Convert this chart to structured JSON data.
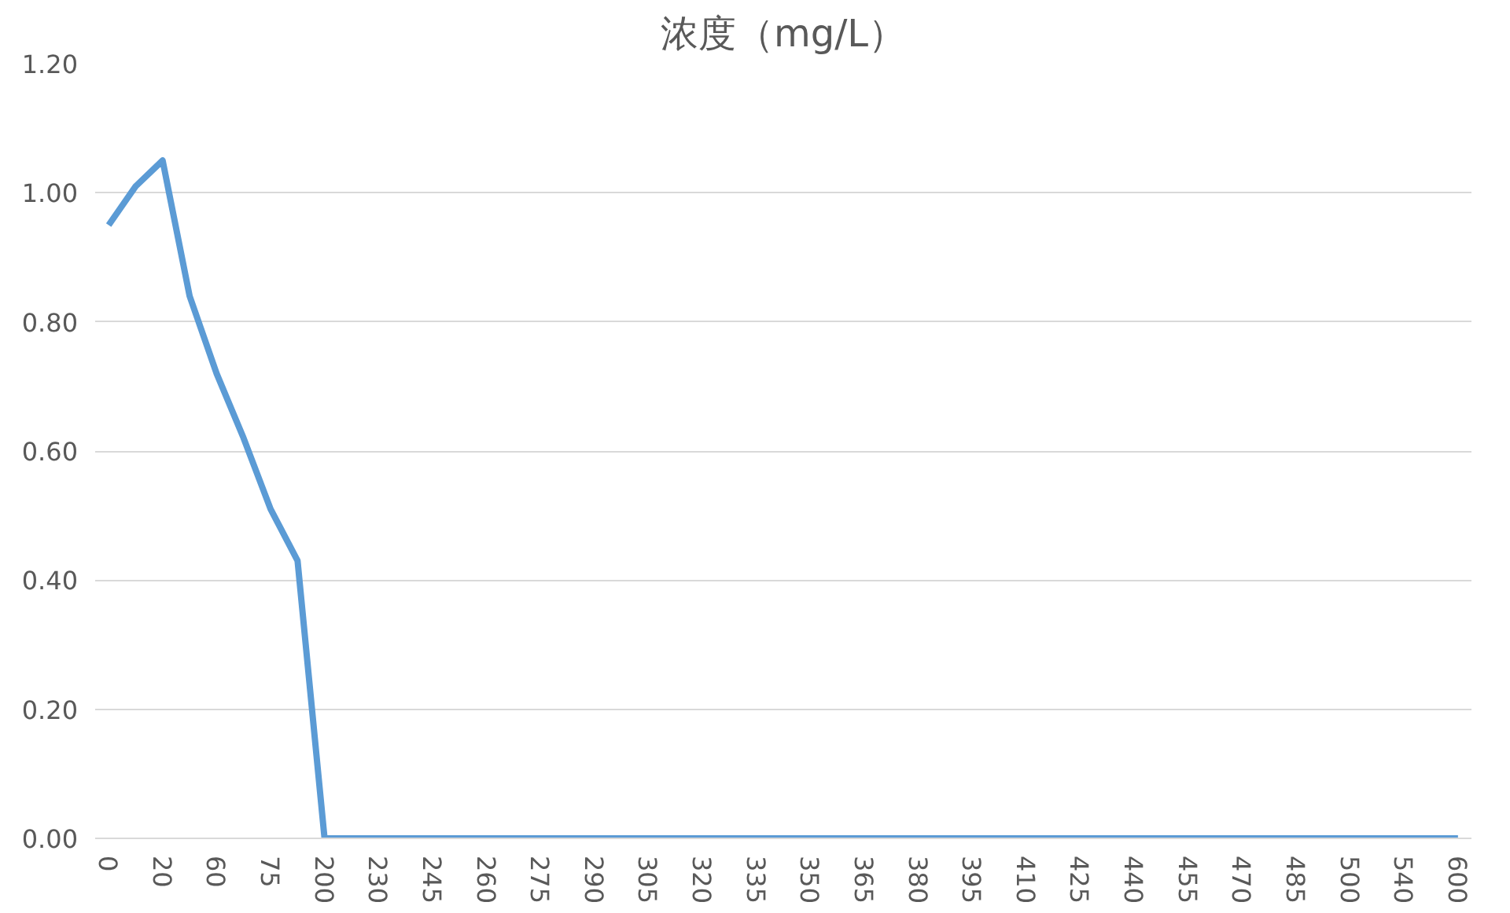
{
  "chart_data": {
    "type": "line",
    "title": "浓度（mg/L）",
    "categories": [
      "0",
      null,
      "20",
      null,
      "60",
      null,
      "75",
      null,
      "200",
      null,
      "230",
      null,
      "245",
      null,
      "260",
      null,
      "275",
      null,
      "290",
      null,
      "305",
      null,
      "320",
      null,
      "335",
      null,
      "350",
      null,
      "365",
      null,
      "380",
      null,
      "395",
      null,
      "410",
      null,
      "425",
      null,
      "440",
      null,
      "455",
      null,
      "470",
      null,
      "485",
      null,
      "500",
      null,
      "540",
      null,
      "600"
    ],
    "series": [
      {
        "color": "#5b9bd5",
        "values": [
          0.95,
          1.01,
          1.05,
          0.84,
          0.72,
          0.62,
          0.51,
          0.43,
          0,
          0,
          0,
          0,
          0,
          0,
          0,
          0,
          0,
          0,
          0,
          0,
          0,
          0,
          0,
          0,
          0,
          0,
          0,
          0,
          0,
          0,
          0,
          0,
          0,
          0,
          0,
          0,
          0,
          0,
          0,
          0,
          0,
          0,
          0,
          0,
          0,
          0,
          0,
          0,
          0,
          0,
          0
        ]
      }
    ],
    "ylim": [
      0,
      1.2
    ],
    "yticks": [
      {
        "value": 0,
        "label": "0.00"
      },
      {
        "value": 0.2,
        "label": "0.20"
      },
      {
        "value": 0.4,
        "label": "0.40"
      },
      {
        "value": 0.6,
        "label": "0.60"
      },
      {
        "value": 0.8,
        "label": "0.80"
      },
      {
        "value": 1.0,
        "label": "1.00"
      },
      {
        "value": 1.2,
        "label": "1.20"
      }
    ],
    "grid": "y"
  }
}
